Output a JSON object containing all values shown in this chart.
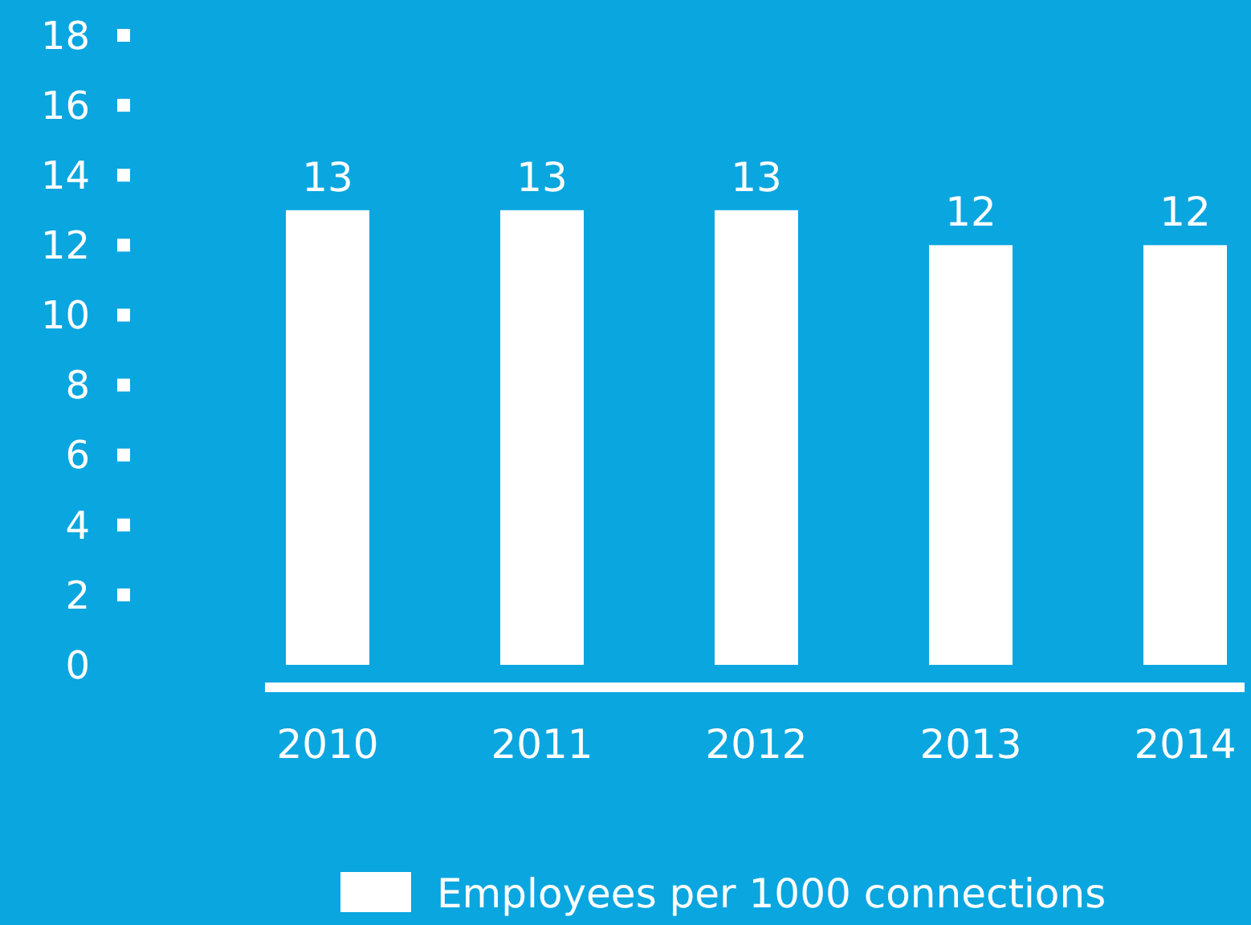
{
  "chart_data": {
    "type": "bar",
    "categories": [
      "2010",
      "2011",
      "2012",
      "2013",
      "2014"
    ],
    "series": [
      {
        "name": "Employees per 1000 connections",
        "color": "#ffffff",
        "values": [
          13,
          13,
          13,
          12,
          12
        ]
      }
    ],
    "ylim": [
      0,
      18
    ],
    "yticks": [
      0,
      2,
      4,
      6,
      8,
      10,
      12,
      14,
      16,
      18
    ],
    "data_labels": true,
    "grid": false,
    "legend": "bottom"
  }
}
